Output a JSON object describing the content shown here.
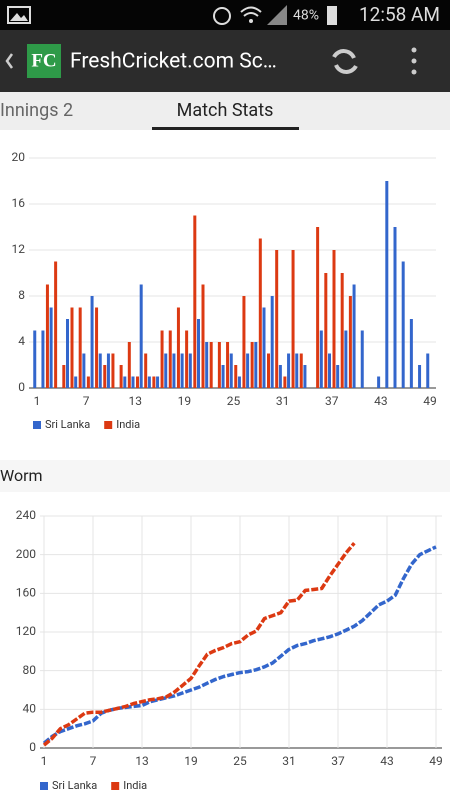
{
  "status_bar": {
    "battery": "48%",
    "time": "12:58 AM"
  },
  "app_bar": {
    "logo": "FC",
    "title": "FreshCricket.com Sc…"
  },
  "tabs": [
    "Innings 2",
    "Match Stats"
  ],
  "chart_data": [
    {
      "type": "bar",
      "x": [
        1,
        2,
        3,
        4,
        5,
        6,
        7,
        8,
        9,
        10,
        11,
        12,
        13,
        14,
        15,
        16,
        17,
        18,
        19,
        20,
        21,
        22,
        23,
        24,
        25,
        26,
        27,
        28,
        29,
        30,
        31,
        32,
        33,
        34,
        35,
        36,
        37,
        38,
        39,
        40,
        41,
        42,
        43,
        44,
        45,
        46,
        47,
        48,
        49
      ],
      "series": [
        {
          "name": "Sri Lanka",
          "color": "#3366cc",
          "values": [
            5,
            5,
            7,
            0,
            6,
            1,
            3,
            8,
            3,
            3,
            0,
            1,
            1,
            9,
            1,
            1,
            3,
            3,
            3,
            3,
            6,
            4,
            0,
            2,
            3,
            1,
            3,
            4,
            7,
            8,
            2,
            3,
            3,
            2,
            0,
            5,
            3,
            2,
            5,
            9,
            5,
            0,
            1,
            18,
            14,
            11,
            6,
            2,
            3
          ]
        },
        {
          "name": "India",
          "color": "#dc3912",
          "values": [
            0,
            9,
            11,
            2,
            7,
            7,
            1,
            7,
            2,
            3,
            2,
            4,
            1,
            3,
            1,
            5,
            5,
            7,
            5,
            15,
            9,
            4,
            4,
            4,
            2,
            8,
            4,
            13,
            3,
            12,
            1,
            12,
            3,
            0,
            14,
            10,
            12,
            10,
            8,
            null,
            null,
            null,
            null,
            null,
            null,
            null,
            null,
            null,
            null
          ]
        }
      ],
      "xlim": [
        1,
        49
      ],
      "xticks": [
        1,
        7,
        13,
        19,
        25,
        31,
        37,
        43,
        49
      ],
      "ylim": [
        0,
        20
      ],
      "yticks": [
        0,
        4,
        8,
        12,
        16,
        20
      ],
      "grid": true,
      "legend": "bottom"
    },
    {
      "type": "line",
      "title": "Worm",
      "x": [
        1,
        2,
        3,
        4,
        5,
        6,
        7,
        8,
        9,
        10,
        11,
        12,
        13,
        14,
        15,
        16,
        17,
        18,
        19,
        20,
        21,
        22,
        23,
        24,
        25,
        26,
        27,
        28,
        29,
        30,
        31,
        32,
        33,
        34,
        35,
        36,
        37,
        38,
        39,
        40,
        41,
        42,
        43,
        44,
        45,
        46,
        47,
        48,
        49
      ],
      "series": [
        {
          "name": "Sri Lanka",
          "color": "#3366cc",
          "values": [
            5,
            12,
            17,
            20,
            23,
            25,
            28,
            36,
            39,
            41,
            42,
            43,
            44,
            48,
            50,
            52,
            54,
            57,
            60,
            63,
            67,
            71,
            74,
            76,
            78,
            79,
            81,
            84,
            88,
            95,
            102,
            106,
            108,
            111,
            113,
            115,
            118,
            122,
            126,
            132,
            140,
            148,
            152,
            158,
            175,
            190,
            200,
            204,
            208
          ]
        },
        {
          "name": "India",
          "color": "#dc3912",
          "values": [
            3,
            10,
            20,
            24,
            30,
            36,
            37,
            37,
            39,
            41,
            43,
            46,
            48,
            50,
            51,
            53,
            58,
            65,
            72,
            85,
            97,
            101,
            104,
            108,
            110,
            117,
            121,
            134,
            137,
            140,
            152,
            153,
            163,
            164,
            165,
            178,
            190,
            202,
            212,
            null,
            null,
            null,
            null,
            null,
            null,
            null,
            null,
            null,
            null
          ]
        }
      ],
      "xlim": [
        1,
        49
      ],
      "xticks": [
        1,
        7,
        13,
        19,
        25,
        31,
        37,
        43,
        49
      ],
      "ylim": [
        0,
        240
      ],
      "yticks": [
        0,
        40,
        80,
        120,
        160,
        200,
        240
      ],
      "grid": true,
      "xgrid": true,
      "legend": "bottom"
    }
  ]
}
